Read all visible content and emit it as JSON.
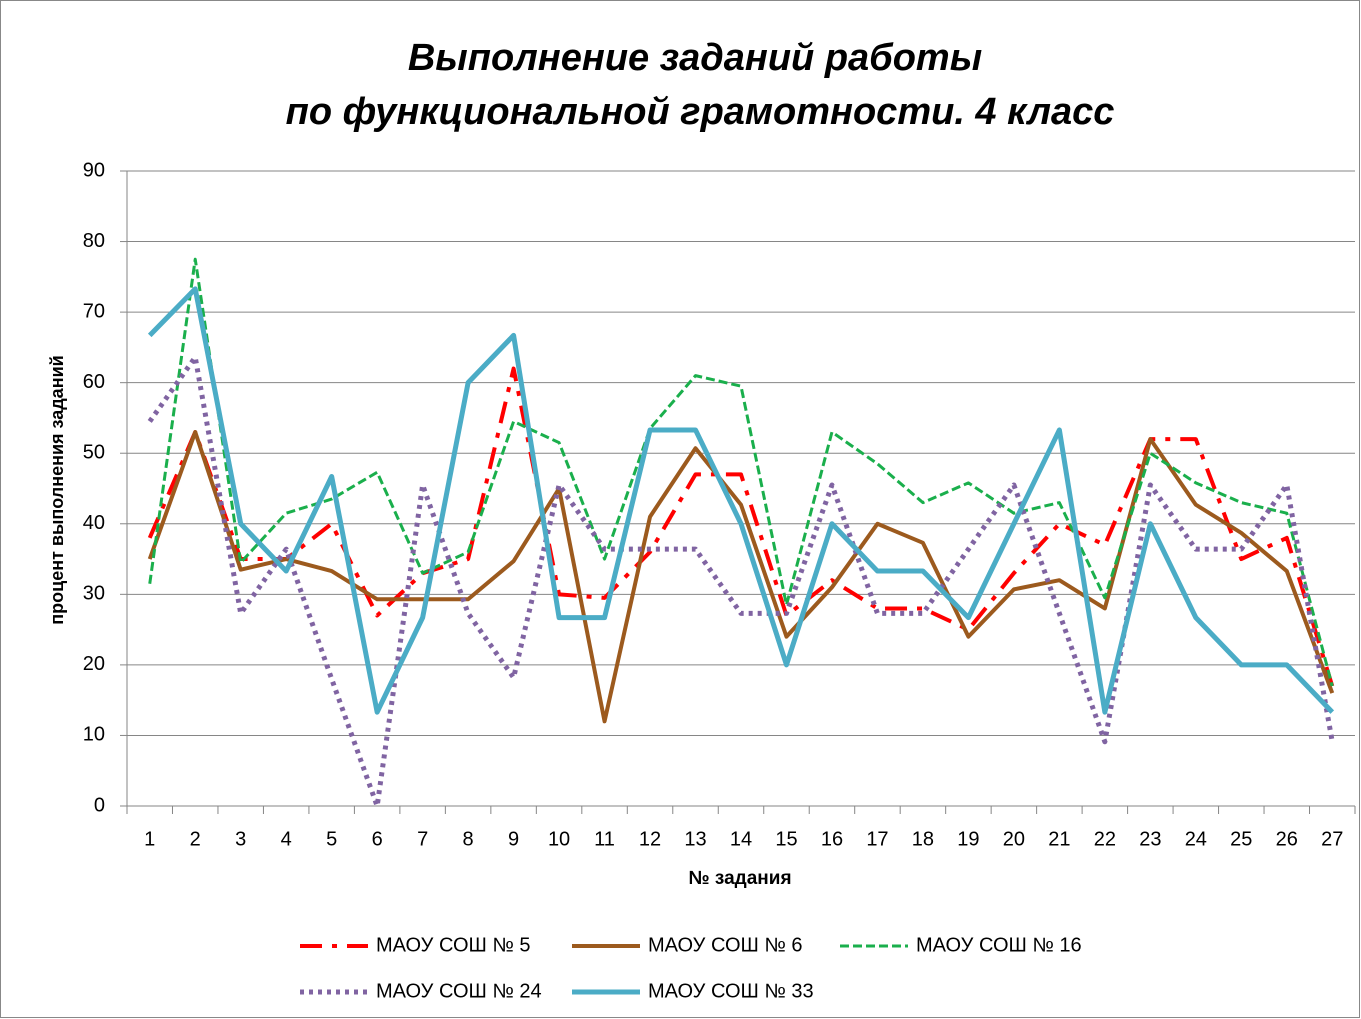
{
  "chart_data": {
    "type": "line",
    "title": [
      "Выполнение заданий работы",
      "по функциональной грамотности. 4 класс"
    ],
    "x_label": "№ задания",
    "y_label": "процент выполнения заданий",
    "categories": [
      "1",
      "2",
      "3",
      "4",
      "5",
      "6",
      "7",
      "8",
      "9",
      "10",
      "11",
      "12",
      "13",
      "14",
      "15",
      "16",
      "17",
      "18",
      "19",
      "20",
      "21",
      "22",
      "23",
      "24",
      "25",
      "26",
      "27"
    ],
    "ylim": [
      0,
      90
    ],
    "yticks": [
      0,
      10,
      20,
      30,
      40,
      50,
      60,
      70,
      80,
      90
    ],
    "grid": true,
    "legend": "bottom",
    "series": [
      {
        "name": "МАОУ СОШ № 5",
        "color": "#ff0000",
        "values": [
          38,
          53,
          35,
          35,
          40,
          27,
          33,
          35,
          62,
          30,
          29.5,
          36,
          47,
          47,
          27,
          32,
          28,
          28,
          25,
          33,
          40,
          37,
          52,
          52,
          35,
          38,
          17
        ]
      },
      {
        "name": "МАОУ СОШ № 6",
        "color": "#9c5a1e",
        "values": [
          35,
          53,
          33.5,
          35,
          33.3,
          29.3,
          29.3,
          29.3,
          34.7,
          45,
          12,
          41,
          50.7,
          42.7,
          24,
          31,
          40,
          37.3,
          24,
          30.7,
          32,
          28,
          52,
          42.7,
          38.7,
          33.3,
          16
        ]
      },
      {
        "name": "МАОУ СОШ № 16",
        "color": "#1aaf4c",
        "values": [
          31.5,
          77.5,
          34.5,
          41.5,
          43.5,
          47.3,
          33,
          36,
          54.5,
          51.5,
          35,
          53.5,
          61,
          59.5,
          28.5,
          53,
          48.5,
          43,
          45.8,
          41.5,
          43,
          29.5,
          50,
          45.8,
          43,
          41.5,
          17
        ]
      },
      {
        "name": "МАОУ СОШ № 24",
        "color": "#8064a2",
        "values": [
          54.5,
          63.6,
          27.3,
          36.4,
          18,
          0,
          45.5,
          27.3,
          18.2,
          45.5,
          36.4,
          36.4,
          36.4,
          27.3,
          27.3,
          45.5,
          27.3,
          27.3,
          36.4,
          45.5,
          27.3,
          9.1,
          45.5,
          36.4,
          36.4,
          45.5,
          9.1
        ]
      },
      {
        "name": "МАОУ СОШ № 33",
        "color": "#4bacc6",
        "values": [
          66.7,
          73.3,
          40,
          33.3,
          46.7,
          13.3,
          26.7,
          60,
          66.7,
          26.7,
          26.7,
          53.3,
          53.3,
          40,
          20,
          40,
          33.3,
          33.3,
          26.7,
          40,
          53.3,
          13.3,
          40,
          26.7,
          20,
          20,
          13.3
        ]
      }
    ]
  }
}
